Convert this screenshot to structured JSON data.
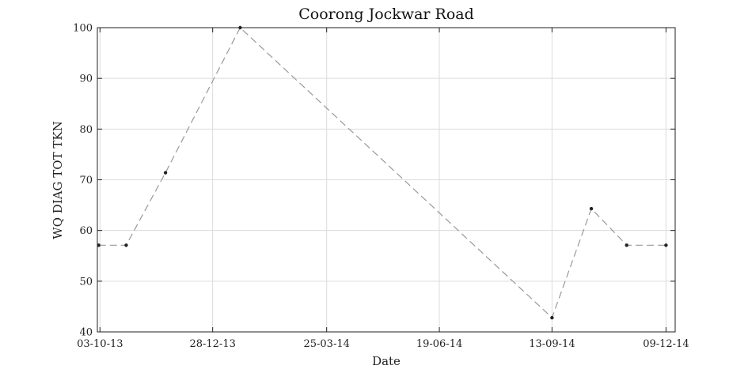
{
  "chart_data": {
    "type": "line",
    "title": "Coorong Jockwar Road",
    "xlabel": "Date",
    "ylabel": "WQ DIAG TOT TKN",
    "xlim": [
      "2013-10-01",
      "2014-12-16"
    ],
    "ylim": [
      40,
      100
    ],
    "y_ticks": [
      40,
      50,
      60,
      70,
      80,
      90,
      100
    ],
    "x_ticks": [
      {
        "date": "2013-10-03",
        "label": "03-10-13"
      },
      {
        "date": "2013-12-28",
        "label": "28-12-13"
      },
      {
        "date": "2014-03-25",
        "label": "25-03-14"
      },
      {
        "date": "2014-06-19",
        "label": "19-06-14"
      },
      {
        "date": "2014-09-13",
        "label": "13-09-14"
      },
      {
        "date": "2014-12-09",
        "label": "09-12-14"
      }
    ],
    "grid": true,
    "series": [
      {
        "color": "#999999",
        "points": [
          {
            "x": "2013-10-02",
            "y": 57.1
          },
          {
            "x": "2013-10-23",
            "y": 57.1
          },
          {
            "x": "2013-11-22",
            "y": 71.4
          },
          {
            "x": "2014-01-18",
            "y": 100
          },
          {
            "x": "2014-09-13",
            "y": 42.8
          },
          {
            "x": "2014-10-13",
            "y": 64.3
          },
          {
            "x": "2014-11-09",
            "y": 57.1
          },
          {
            "x": "2014-12-09",
            "y": 57.1
          }
        ]
      }
    ]
  }
}
